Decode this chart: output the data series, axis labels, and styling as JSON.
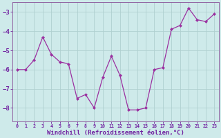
{
  "x": [
    0,
    1,
    2,
    3,
    4,
    5,
    6,
    7,
    8,
    9,
    10,
    11,
    12,
    13,
    14,
    15,
    16,
    17,
    18,
    19,
    20,
    21,
    22,
    23
  ],
  "y": [
    -6.0,
    -6.0,
    -5.5,
    -4.3,
    -5.2,
    -5.6,
    -5.7,
    -7.5,
    -7.3,
    -8.0,
    -6.4,
    -5.3,
    -6.3,
    -8.1,
    -8.1,
    -8.0,
    -6.0,
    -5.9,
    -3.9,
    -3.7,
    -2.8,
    -3.4,
    -3.5,
    -3.1
  ],
  "line_color": "#9b30a0",
  "marker": "D",
  "markersize": 2.0,
  "linewidth": 0.9,
  "xlabel": "Windchill (Refroidissement éolien,°C)",
  "xlabel_fontsize": 6.5,
  "xlim": [
    -0.5,
    23.5
  ],
  "ylim": [
    -8.7,
    -2.5
  ],
  "yticks": [
    -8,
    -7,
    -6,
    -5,
    -4,
    -3
  ],
  "xticks": [
    0,
    1,
    2,
    3,
    4,
    5,
    6,
    7,
    8,
    9,
    10,
    11,
    12,
    13,
    14,
    15,
    16,
    17,
    18,
    19,
    20,
    21,
    22,
    23
  ],
  "xtick_fontsize": 4.8,
  "ytick_fontsize": 6.5,
  "bg_color": "#ceeaea",
  "grid_color": "#b0d0d0",
  "grid_linewidth": 0.6,
  "spine_color": "#9060a0",
  "text_color": "#7020a0"
}
